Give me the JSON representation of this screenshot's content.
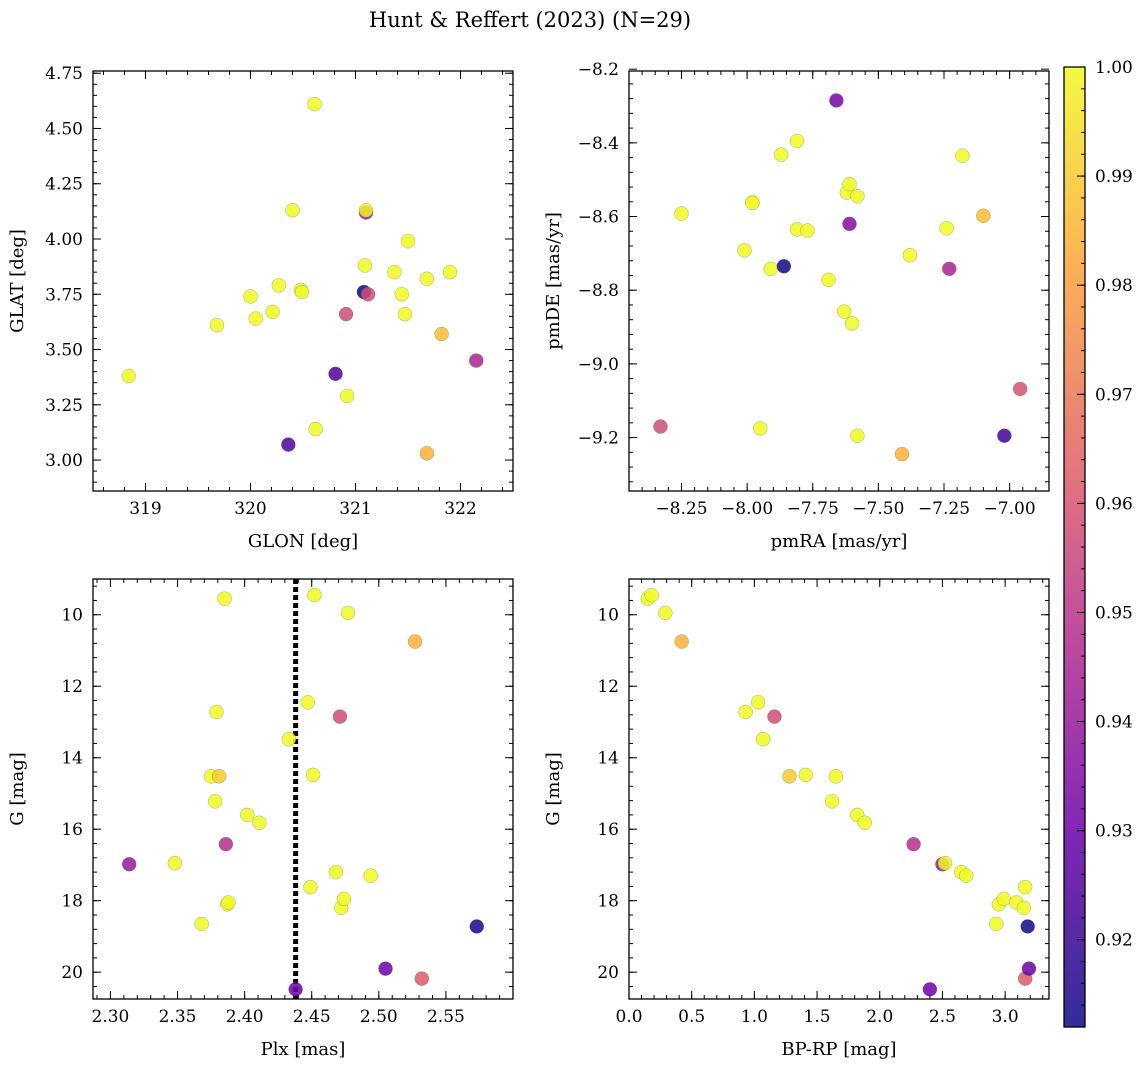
{
  "figure": {
    "title": "Hunt & Reffert (2023) (N=29)"
  },
  "colormap": {
    "name": "plasma",
    "stops": [
      "#0d0887",
      "#6a00a8",
      "#b12a90",
      "#e16462",
      "#fca636",
      "#f0f921"
    ],
    "range": [
      0.912,
      1.0
    ],
    "ticks": [
      "0.92",
      "0.93",
      "0.94",
      "0.95",
      "0.96",
      "0.97",
      "0.98",
      "0.99",
      "1.00"
    ],
    "tick_values": [
      0.92,
      0.93,
      0.94,
      0.95,
      0.96,
      0.97,
      0.98,
      0.99,
      1.0
    ]
  },
  "chart_data": [
    {
      "type": "scatter",
      "id": "sky",
      "xlabel": "GLON [deg]",
      "ylabel": "GLAT [deg]",
      "xlim": [
        318.5,
        322.5
      ],
      "ylim": [
        2.86,
        4.76
      ],
      "y_inverted": false,
      "x_ticks": [
        319,
        320,
        321,
        322
      ],
      "x_tick_labels": [
        "319",
        "320",
        "321",
        "322"
      ],
      "y_ticks": [
        3.0,
        3.25,
        3.5,
        3.75,
        4.0,
        4.25,
        4.5,
        4.75
      ],
      "y_tick_labels": [
        "3.00",
        "3.25",
        "3.50",
        "3.75",
        "4.00",
        "4.25",
        "4.50",
        "4.75"
      ],
      "points": [
        {
          "x": 318.84,
          "y": 3.38,
          "c": 1.0
        },
        {
          "x": 319.68,
          "y": 3.61,
          "c": 1.0
        },
        {
          "x": 320.0,
          "y": 3.74,
          "c": 1.0
        },
        {
          "x": 320.05,
          "y": 3.64,
          "c": 1.0
        },
        {
          "x": 320.21,
          "y": 3.67,
          "c": 1.0
        },
        {
          "x": 320.27,
          "y": 3.79,
          "c": 1.0
        },
        {
          "x": 320.4,
          "y": 4.13,
          "c": 1.0
        },
        {
          "x": 320.48,
          "y": 3.77,
          "c": 1.0
        },
        {
          "x": 320.49,
          "y": 3.76,
          "c": 1.0
        },
        {
          "x": 320.36,
          "y": 3.07,
          "c": 0.925
        },
        {
          "x": 320.61,
          "y": 4.61,
          "c": 1.0
        },
        {
          "x": 320.62,
          "y": 3.14,
          "c": 1.0
        },
        {
          "x": 320.81,
          "y": 3.39,
          "c": 0.925
        },
        {
          "x": 320.91,
          "y": 3.66,
          "c": 0.958
        },
        {
          "x": 320.92,
          "y": 3.29,
          "c": 1.0
        },
        {
          "x": 321.08,
          "y": 3.76,
          "c": 0.913
        },
        {
          "x": 321.09,
          "y": 3.88,
          "c": 1.0
        },
        {
          "x": 321.1,
          "y": 4.12,
          "c": 0.94
        },
        {
          "x": 321.1,
          "y": 4.13,
          "c": 1.0
        },
        {
          "x": 321.12,
          "y": 3.75,
          "c": 0.958
        },
        {
          "x": 321.37,
          "y": 3.85,
          "c": 1.0
        },
        {
          "x": 321.44,
          "y": 3.75,
          "c": 1.0
        },
        {
          "x": 321.47,
          "y": 3.66,
          "c": 1.0
        },
        {
          "x": 321.5,
          "y": 3.99,
          "c": 1.0
        },
        {
          "x": 321.68,
          "y": 3.82,
          "c": 1.0
        },
        {
          "x": 321.68,
          "y": 3.03,
          "c": 0.985
        },
        {
          "x": 321.82,
          "y": 3.57,
          "c": 0.987
        },
        {
          "x": 321.9,
          "y": 3.85,
          "c": 1.0
        },
        {
          "x": 322.15,
          "y": 3.45,
          "c": 0.945
        }
      ]
    },
    {
      "type": "scatter",
      "id": "pm",
      "xlabel": "pmRA [mas/yr]",
      "ylabel": "pmDE [mas/yr]",
      "xlim": [
        -8.45,
        -6.85
      ],
      "ylim": [
        -9.345,
        -8.205
      ],
      "y_inverted": false,
      "x_ticks": [
        -8.25,
        -8.0,
        -7.75,
        -7.5,
        -7.25,
        -7.0
      ],
      "x_tick_labels": [
        "−8.25",
        "−8.00",
        "−7.75",
        "−7.50",
        "−7.25",
        "−7.00"
      ],
      "y_ticks": [
        -9.2,
        -9.0,
        -8.8,
        -8.6,
        -8.4,
        -8.2
      ],
      "y_tick_labels": [
        "−9.2",
        "−9.0",
        "−8.8",
        "−8.6",
        "−8.4",
        "−8.2"
      ],
      "points": [
        {
          "x": -7.66,
          "y": -8.285,
          "c": 0.932
        },
        {
          "x": -8.25,
          "y": -8.592,
          "c": 1.0
        },
        {
          "x": -8.33,
          "y": -9.17,
          "c": 0.958
        },
        {
          "x": -8.01,
          "y": -8.692,
          "c": 1.0
        },
        {
          "x": -7.98,
          "y": -8.562,
          "c": 1.0
        },
        {
          "x": -7.98,
          "y": -8.563,
          "c": 1.0
        },
        {
          "x": -7.95,
          "y": -9.175,
          "c": 1.0
        },
        {
          "x": -7.91,
          "y": -8.742,
          "c": 1.0
        },
        {
          "x": -7.87,
          "y": -8.432,
          "c": 1.0
        },
        {
          "x": -7.86,
          "y": -8.735,
          "c": 0.913
        },
        {
          "x": -7.81,
          "y": -8.395,
          "c": 1.0
        },
        {
          "x": -7.81,
          "y": -8.635,
          "c": 1.0
        },
        {
          "x": -7.77,
          "y": -8.638,
          "c": 1.0
        },
        {
          "x": -7.69,
          "y": -8.772,
          "c": 1.0
        },
        {
          "x": -7.63,
          "y": -8.858,
          "c": 1.0
        },
        {
          "x": -7.62,
          "y": -8.535,
          "c": 1.0
        },
        {
          "x": -7.61,
          "y": -8.512,
          "c": 1.0
        },
        {
          "x": -7.61,
          "y": -8.62,
          "c": 0.935
        },
        {
          "x": -7.6,
          "y": -8.89,
          "c": 1.0
        },
        {
          "x": -7.58,
          "y": -8.545,
          "c": 1.0
        },
        {
          "x": -7.58,
          "y": -9.195,
          "c": 1.0
        },
        {
          "x": -7.41,
          "y": -9.245,
          "c": 0.985
        },
        {
          "x": -7.38,
          "y": -8.705,
          "c": 1.0
        },
        {
          "x": -7.24,
          "y": -8.632,
          "c": 1.0
        },
        {
          "x": -7.23,
          "y": -8.742,
          "c": 0.945
        },
        {
          "x": -7.18,
          "y": -8.435,
          "c": 1.0
        },
        {
          "x": -7.1,
          "y": -8.598,
          "c": 0.988
        },
        {
          "x": -7.02,
          "y": -9.195,
          "c": 0.922
        },
        {
          "x": -6.96,
          "y": -9.068,
          "c": 0.96
        }
      ]
    },
    {
      "type": "scatter",
      "id": "plx-g",
      "xlabel": "Plx [mas]",
      "ylabel": "G [mag]",
      "xlim": [
        2.287,
        2.6
      ],
      "ylim": [
        9.0,
        20.75
      ],
      "y_inverted": true,
      "vline": {
        "x": 2.438,
        "style": "dotted",
        "color": "#000000"
      },
      "x_ticks": [
        2.3,
        2.35,
        2.4,
        2.45,
        2.5,
        2.55
      ],
      "x_tick_labels": [
        "2.30",
        "2.35",
        "2.40",
        "2.45",
        "2.50",
        "2.55"
      ],
      "y_ticks": [
        10,
        12,
        14,
        16,
        18,
        20
      ],
      "y_tick_labels": [
        "10",
        "12",
        "14",
        "16",
        "18",
        "20"
      ],
      "points": [
        {
          "x": 2.314,
          "y": 16.98,
          "c": 0.94
        },
        {
          "x": 2.348,
          "y": 16.95,
          "c": 1.0
        },
        {
          "x": 2.368,
          "y": 18.65,
          "c": 1.0
        },
        {
          "x": 2.375,
          "y": 14.52,
          "c": 1.0
        },
        {
          "x": 2.378,
          "y": 15.22,
          "c": 1.0
        },
        {
          "x": 2.379,
          "y": 12.72,
          "c": 1.0
        },
        {
          "x": 2.381,
          "y": 14.52,
          "c": 0.99
        },
        {
          "x": 2.385,
          "y": 9.55,
          "c": 1.0
        },
        {
          "x": 2.386,
          "y": 16.42,
          "c": 0.948
        },
        {
          "x": 2.387,
          "y": 18.1,
          "c": 1.0
        },
        {
          "x": 2.388,
          "y": 18.05,
          "c": 1.0
        },
        {
          "x": 2.402,
          "y": 15.6,
          "c": 1.0
        },
        {
          "x": 2.411,
          "y": 15.82,
          "c": 1.0
        },
        {
          "x": 2.433,
          "y": 13.48,
          "c": 1.0
        },
        {
          "x": 2.438,
          "y": 20.48,
          "c": 0.93
        },
        {
          "x": 2.447,
          "y": 12.45,
          "c": 1.0
        },
        {
          "x": 2.449,
          "y": 17.62,
          "c": 1.0
        },
        {
          "x": 2.451,
          "y": 14.48,
          "c": 1.0
        },
        {
          "x": 2.452,
          "y": 9.45,
          "c": 1.0
        },
        {
          "x": 2.468,
          "y": 17.2,
          "c": 1.0
        },
        {
          "x": 2.471,
          "y": 12.85,
          "c": 0.958
        },
        {
          "x": 2.472,
          "y": 18.2,
          "c": 1.0
        },
        {
          "x": 2.474,
          "y": 17.95,
          "c": 1.0
        },
        {
          "x": 2.477,
          "y": 9.95,
          "c": 1.0
        },
        {
          "x": 2.494,
          "y": 17.3,
          "c": 1.0
        },
        {
          "x": 2.505,
          "y": 19.9,
          "c": 0.93
        },
        {
          "x": 2.527,
          "y": 10.75,
          "c": 0.985
        },
        {
          "x": 2.532,
          "y": 20.18,
          "c": 0.962
        },
        {
          "x": 2.573,
          "y": 18.72,
          "c": 0.913
        }
      ]
    },
    {
      "type": "scatter",
      "id": "cmd",
      "xlabel": "BP-RP [mag]",
      "ylabel": "G [mag]",
      "xlim": [
        0.0,
        3.35
      ],
      "ylim": [
        9.0,
        20.75
      ],
      "y_inverted": true,
      "x_ticks": [
        0.0,
        0.5,
        1.0,
        1.5,
        2.0,
        2.5,
        3.0
      ],
      "x_tick_labels": [
        "0.0",
        "0.5",
        "1.0",
        "1.5",
        "2.0",
        "2.5",
        "3.0"
      ],
      "y_ticks": [
        10,
        12,
        14,
        16,
        18,
        20
      ],
      "y_tick_labels": [
        "10",
        "12",
        "14",
        "16",
        "18",
        "20"
      ],
      "points": [
        {
          "x": 0.15,
          "y": 9.55,
          "c": 1.0
        },
        {
          "x": 0.18,
          "y": 9.45,
          "c": 1.0
        },
        {
          "x": 0.29,
          "y": 9.95,
          "c": 1.0
        },
        {
          "x": 0.42,
          "y": 10.75,
          "c": 0.985
        },
        {
          "x": 0.93,
          "y": 12.72,
          "c": 1.0
        },
        {
          "x": 1.03,
          "y": 12.45,
          "c": 1.0
        },
        {
          "x": 1.07,
          "y": 13.48,
          "c": 1.0
        },
        {
          "x": 1.16,
          "y": 12.85,
          "c": 0.958
        },
        {
          "x": 1.28,
          "y": 14.52,
          "c": 0.99
        },
        {
          "x": 1.41,
          "y": 14.48,
          "c": 1.0
        },
        {
          "x": 1.62,
          "y": 15.22,
          "c": 1.0
        },
        {
          "x": 1.65,
          "y": 14.52,
          "c": 1.0
        },
        {
          "x": 1.82,
          "y": 15.6,
          "c": 1.0
        },
        {
          "x": 1.88,
          "y": 15.82,
          "c": 1.0
        },
        {
          "x": 2.27,
          "y": 16.42,
          "c": 0.948
        },
        {
          "x": 2.4,
          "y": 20.48,
          "c": 0.93
        },
        {
          "x": 2.5,
          "y": 16.98,
          "c": 0.94
        },
        {
          "x": 2.52,
          "y": 16.95,
          "c": 1.0
        },
        {
          "x": 2.65,
          "y": 17.2,
          "c": 1.0
        },
        {
          "x": 2.69,
          "y": 17.3,
          "c": 1.0
        },
        {
          "x": 2.93,
          "y": 18.65,
          "c": 1.0
        },
        {
          "x": 2.95,
          "y": 18.1,
          "c": 1.0
        },
        {
          "x": 2.99,
          "y": 17.95,
          "c": 1.0
        },
        {
          "x": 3.09,
          "y": 18.05,
          "c": 1.0
        },
        {
          "x": 3.15,
          "y": 18.2,
          "c": 1.0
        },
        {
          "x": 3.16,
          "y": 17.62,
          "c": 1.0
        },
        {
          "x": 3.16,
          "y": 20.18,
          "c": 0.962
        },
        {
          "x": 3.18,
          "y": 18.72,
          "c": 0.913
        },
        {
          "x": 3.19,
          "y": 19.9,
          "c": 0.93
        }
      ]
    }
  ]
}
